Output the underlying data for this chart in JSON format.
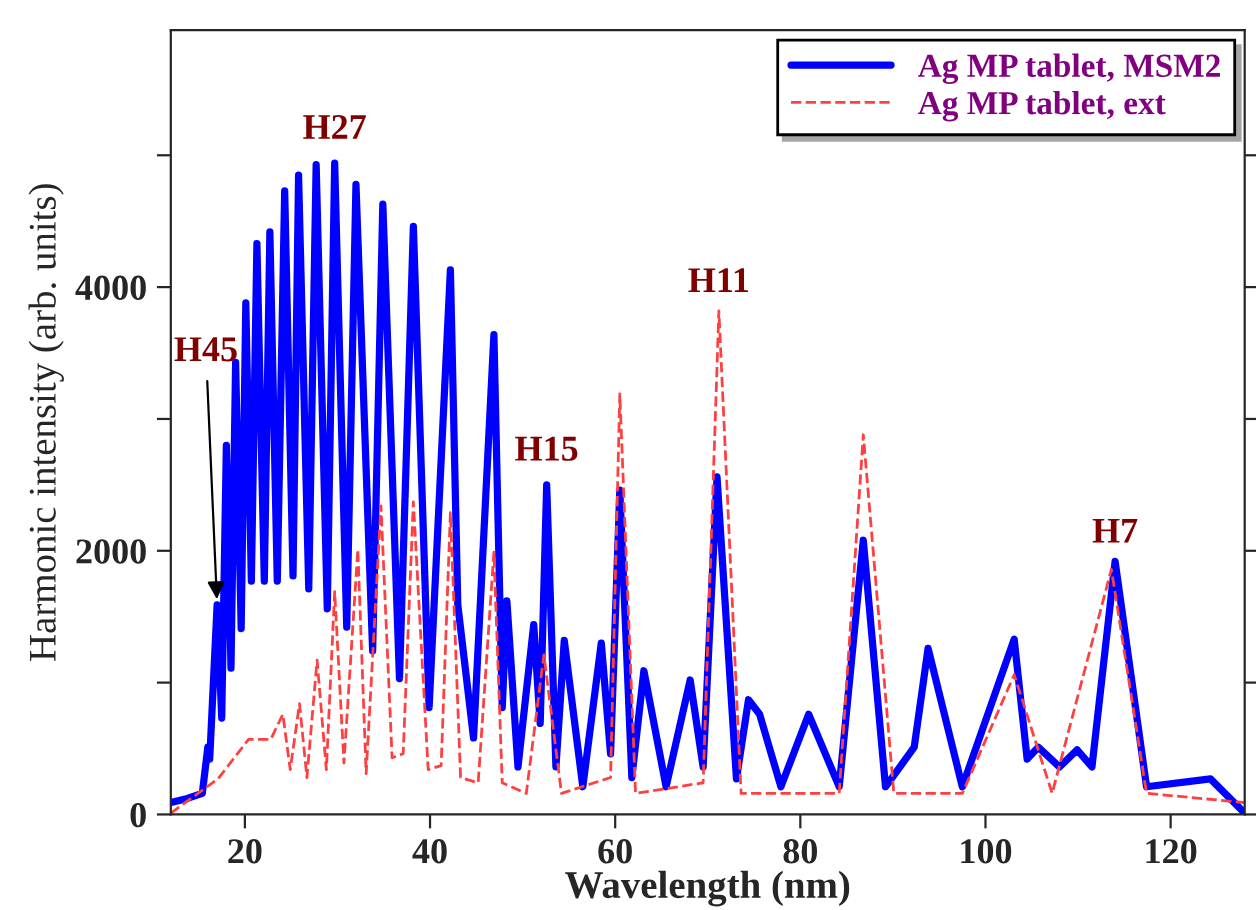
{
  "chart_data": {
    "type": "line",
    "xlabel": "Wavelength (nm)",
    "ylabel": "Harmonic intensity (arb. units)",
    "xlim": [
      12,
      128
    ],
    "xticks": [
      20,
      40,
      60,
      80,
      100,
      120
    ],
    "ylim": [
      0,
      5950
    ],
    "yticks": [
      0,
      {
        "value": 1000,
        "label": null
      },
      2000,
      {
        "value": 3000,
        "label": null
      },
      4000,
      {
        "value": 5000,
        "label": null
      }
    ],
    "grid": false,
    "legend": "top right",
    "series": [
      {
        "name": "Ag MP tablet, MSM2",
        "color": "#0000ff",
        "line_style": "solid",
        "x": [
          12.0,
          13.7,
          15.4,
          16.0,
          16.2,
          17.0,
          17.5,
          18.0,
          18.5,
          19.0,
          19.6,
          20.1,
          20.7,
          21.3,
          22.1,
          22.7,
          23.5,
          24.3,
          25.2,
          25.8,
          26.9,
          27.7,
          28.9,
          29.7,
          31.0,
          32.0,
          33.8,
          34.9,
          36.7,
          38.2,
          39.9,
          42.2,
          43.0,
          44.7,
          46.9,
          47.8,
          48.3,
          49.5,
          51.2,
          51.9,
          52.6,
          53.6,
          54.5,
          56.5,
          58.5,
          59.5,
          60.5,
          61.8,
          63.1,
          65.5,
          68.1,
          69.5,
          71.0,
          73.1,
          74.4,
          75.6,
          77.9,
          80.9,
          84.2,
          86.8,
          89.2,
          92.3,
          93.8,
          97.5,
          103.1,
          104.5,
          105.7,
          108.0,
          109.9,
          111.5,
          114.0,
          117.4,
          124.3,
          128.0
        ],
        "values": [
          90,
          120,
          160,
          510,
          420,
          1590,
          730,
          2800,
          1110,
          3430,
          1410,
          3880,
          1770,
          4330,
          1770,
          4420,
          1770,
          4730,
          1810,
          4850,
          1710,
          4930,
          1560,
          4940,
          1420,
          4780,
          1240,
          4630,
          1030,
          4460,
          810,
          4130,
          1590,
          580,
          3640,
          810,
          1620,
          360,
          1440,
          690,
          2500,
          360,
          1320,
          210,
          1300,
          460,
          2460,
          280,
          1090,
          210,
          1020,
          360,
          2560,
          270,
          870,
          760,
          210,
          760,
          210,
          2080,
          210,
          510,
          1260,
          210,
          1330,
          420,
          510,
          360,
          490,
          360,
          1920,
          210,
          270,
          10
        ]
      },
      {
        "name": "Ag MP tablet, ext",
        "color": "#ff4040",
        "line_style": "dashed",
        "x": [
          12.0,
          17.1,
          20.4,
          22.8,
          24.1,
          24.9,
          25.9,
          26.7,
          27.8,
          28.8,
          29.7,
          30.7,
          32.2,
          33.1,
          34.7,
          35.9,
          37.1,
          38.2,
          39.8,
          41.2,
          42.2,
          43.3,
          45.2,
          46.9,
          47.8,
          50.4,
          52.3,
          54.2,
          59.5,
          60.5,
          62.2,
          69.5,
          71.2,
          73.6,
          84.2,
          86.8,
          90.1,
          97.5,
          103.1,
          107.2,
          113.6,
          117.4,
          128.0
        ],
        "values": [
          10,
          270,
          570,
          570,
          760,
          340,
          840,
          280,
          1170,
          340,
          1690,
          390,
          2010,
          310,
          2340,
          430,
          460,
          2370,
          340,
          370,
          2290,
          280,
          240,
          1990,
          240,
          160,
          1210,
          160,
          280,
          3190,
          160,
          240,
          3820,
          160,
          160,
          2880,
          160,
          160,
          1060,
          160,
          1860,
          160,
          90
        ]
      }
    ],
    "annotations": [
      {
        "text": "H45",
        "x": 17.0,
        "y": 1590
      },
      {
        "text": "H27",
        "x": 29.7,
        "y": 4940
      },
      {
        "text": "H15",
        "x": 52.6,
        "y": 2500
      },
      {
        "text": "H11",
        "x": 71.2,
        "y": 3820
      },
      {
        "text": "H7",
        "x": 114.0,
        "y": 1920
      }
    ]
  }
}
